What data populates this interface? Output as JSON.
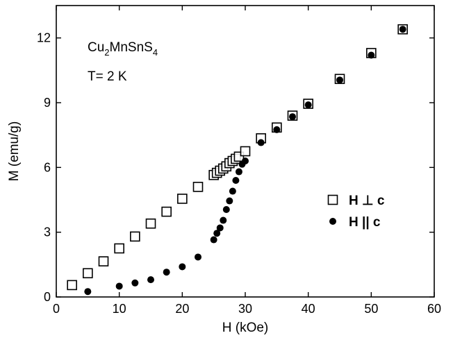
{
  "chart_data": {
    "type": "scatter",
    "xlabel": "H (kOe)",
    "ylabel": "M (emu/g)",
    "xlim": [
      0,
      60
    ],
    "ylim": [
      0,
      13.5
    ],
    "xticks": [
      0,
      10,
      20,
      30,
      40,
      50,
      60
    ],
    "yticks": [
      0,
      3,
      6,
      9,
      12
    ],
    "grid": false,
    "legend_position": "right",
    "annotations": {
      "formula": {
        "base": "Cu",
        "sub1": "2",
        "mid": "MnSnS",
        "sub2": "4"
      },
      "temperature": "T= 2 K"
    },
    "series": [
      {
        "name": "H ⊥ c",
        "marker": "open-square",
        "color": "#000000",
        "x": [
          2.5,
          5,
          7.5,
          10,
          12.5,
          15,
          17.5,
          20,
          22.5,
          25,
          25.5,
          26,
          26.5,
          27,
          27.5,
          28,
          28.5,
          29,
          30,
          32.5,
          35,
          37.5,
          40,
          45,
          50,
          55
        ],
        "y": [
          0.55,
          1.1,
          1.65,
          2.25,
          2.8,
          3.4,
          3.95,
          4.55,
          5.1,
          5.65,
          5.75,
          5.85,
          5.95,
          6.05,
          6.2,
          6.3,
          6.4,
          6.5,
          6.75,
          7.35,
          7.85,
          8.4,
          8.95,
          10.1,
          11.3,
          12.4
        ]
      },
      {
        "name": "H || c",
        "marker": "filled-circle",
        "color": "#000000",
        "x": [
          5,
          10,
          12.5,
          15,
          17.5,
          20,
          22.5,
          25,
          25.5,
          26,
          26.5,
          27,
          27.5,
          28,
          28.5,
          29,
          29.5,
          30,
          32.5,
          35,
          37.5,
          40,
          45,
          50,
          55
        ],
        "y": [
          0.25,
          0.5,
          0.65,
          0.8,
          1.15,
          1.4,
          1.85,
          2.65,
          2.95,
          3.2,
          3.55,
          4.05,
          4.45,
          4.9,
          5.4,
          5.8,
          6.15,
          6.3,
          7.15,
          7.75,
          8.35,
          8.9,
          10.05,
          11.2,
          12.4
        ]
      }
    ]
  }
}
